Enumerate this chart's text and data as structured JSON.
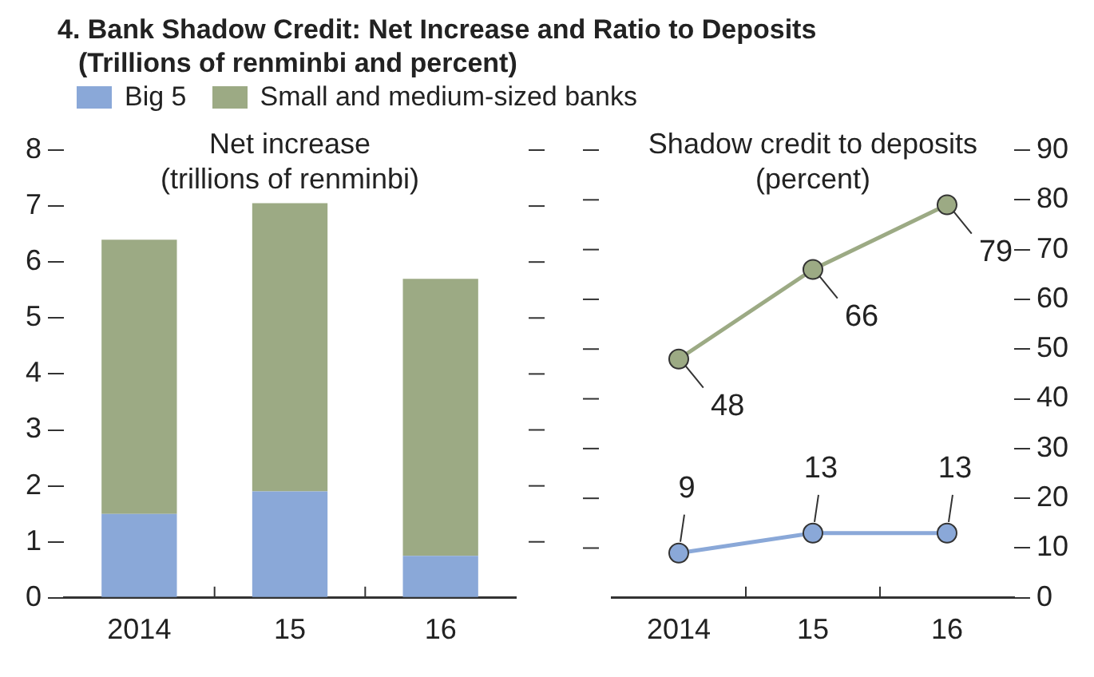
{
  "chart_data": [
    {
      "type": "bar",
      "title": "4. Bank Shadow Credit: Net Increase and Ratio to Deposits",
      "subtitle": "(Trillions of renminbi and percent)",
      "annotations": [
        "Net increase",
        "(trillions of renminbi)"
      ],
      "categories": [
        "2014",
        "15",
        "16"
      ],
      "stacked": true,
      "legend": "top",
      "grid": false,
      "ylim": [
        0,
        8
      ],
      "yticks": [
        0,
        1,
        2,
        3,
        4,
        5,
        6,
        7,
        8
      ],
      "series": [
        {
          "name": "Big 5",
          "color": "#8aa8d8",
          "values": [
            1.5,
            1.9,
            0.75
          ]
        },
        {
          "name": "Small and medium-sized banks",
          "color": "#9caa84",
          "values": [
            4.9,
            5.15,
            4.95
          ]
        }
      ]
    },
    {
      "type": "line",
      "annotations": [
        "Shadow credit to deposits",
        "(percent)"
      ],
      "categories": [
        "2014",
        "15",
        "16"
      ],
      "grid": false,
      "marker": "circle",
      "data_labels": true,
      "y2lim": [
        0,
        90
      ],
      "y2ticks": [
        0,
        10,
        20,
        30,
        40,
        50,
        60,
        70,
        80,
        90
      ],
      "series": [
        {
          "color": "#9caa84",
          "values": [
            48,
            66,
            79
          ],
          "axis": "y2"
        },
        {
          "color": "#8aa8d8",
          "values": [
            9,
            13,
            13
          ],
          "axis": "y2"
        }
      ]
    }
  ]
}
